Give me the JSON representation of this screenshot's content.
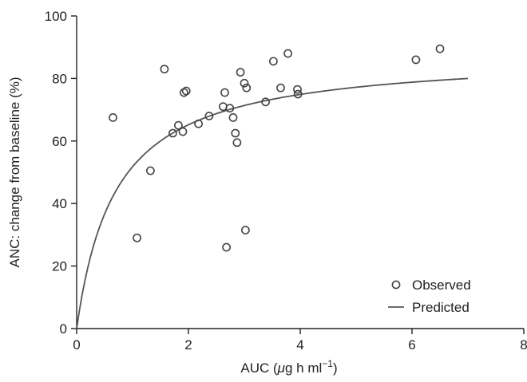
{
  "chart_data": {
    "type": "scatter",
    "title": "",
    "xlabel_parts": {
      "pre": "AUC (",
      "mu": "μ",
      "mid": "g h ml",
      "sup": "−1",
      "post": ")"
    },
    "ylabel": "ANC: change from baseline (%)",
    "xlim": [
      0,
      8
    ],
    "ylim": [
      0,
      100
    ],
    "x_ticks": [
      0,
      2,
      4,
      6,
      8
    ],
    "y_ticks": [
      0,
      20,
      40,
      60,
      80,
      100
    ],
    "grid": false,
    "legend_position": "bottom-right",
    "series": [
      {
        "name": "Observed",
        "kind": "points",
        "marker": "open-circle",
        "color": "#444444",
        "points": [
          [
            0.65,
            67.5
          ],
          [
            1.08,
            29
          ],
          [
            1.32,
            50.5
          ],
          [
            1.57,
            83
          ],
          [
            1.72,
            62.5
          ],
          [
            1.82,
            65
          ],
          [
            1.9,
            63
          ],
          [
            1.92,
            75.5
          ],
          [
            1.96,
            76
          ],
          [
            2.18,
            65.5
          ],
          [
            2.37,
            68
          ],
          [
            2.62,
            71
          ],
          [
            2.65,
            75.5
          ],
          [
            2.68,
            26
          ],
          [
            2.74,
            70.5
          ],
          [
            2.8,
            67.5
          ],
          [
            2.84,
            62.5
          ],
          [
            2.87,
            59.5
          ],
          [
            2.93,
            82
          ],
          [
            3.0,
            78.5
          ],
          [
            3.02,
            31.5
          ],
          [
            3.04,
            77
          ],
          [
            3.38,
            72.5
          ],
          [
            3.52,
            85.5
          ],
          [
            3.65,
            77
          ],
          [
            3.78,
            88
          ],
          [
            3.95,
            76.5
          ],
          [
            3.96,
            75
          ],
          [
            6.07,
            86
          ],
          [
            6.5,
            89.5
          ]
        ]
      },
      {
        "name": "Predicted",
        "kind": "curve",
        "color": "#555555",
        "emax": 88,
        "ec50": 0.7,
        "x_range": [
          0,
          7
        ]
      }
    ]
  }
}
